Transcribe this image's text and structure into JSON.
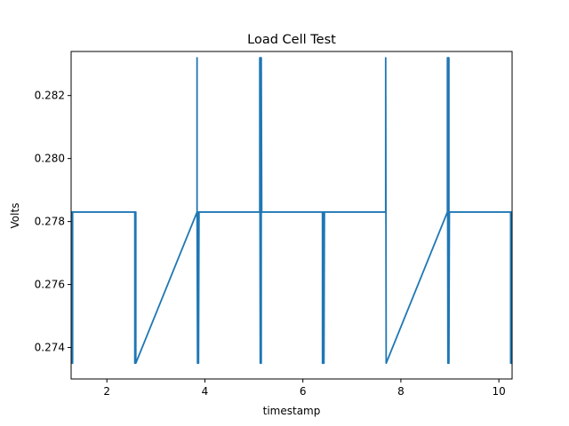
{
  "chart_data": {
    "type": "line",
    "title": "Load Cell Test",
    "xlabel": "timestamp",
    "ylabel": "Volts",
    "xlim": [
      1.27,
      10.27
    ],
    "ylim": [
      0.273,
      0.2834
    ],
    "xticks": [
      2,
      4,
      6,
      8,
      10
    ],
    "yticks": [
      0.274,
      0.276,
      0.278,
      0.28,
      0.282
    ],
    "ytick_labels": [
      "0.274",
      "0.276",
      "0.278",
      "0.280",
      "0.282"
    ],
    "grid": false,
    "series_color": "#1f77b4",
    "series": [
      {
        "x": [
          1.27,
          1.29,
          1.29,
          1.29,
          1.3,
          1.3,
          1.31,
          2.57,
          2.57,
          2.57,
          2.58,
          2.58,
          2.59,
          2.59,
          2.59,
          3.84,
          3.84,
          3.84,
          3.85,
          3.85,
          3.86,
          3.86,
          3.86,
          3.87,
          3.87,
          3.88,
          5.12,
          5.12,
          5.13,
          5.13,
          5.14,
          5.14,
          5.15,
          5.15,
          5.16,
          6.4,
          6.4,
          6.41,
          6.41,
          6.42,
          6.42,
          6.43,
          6.43,
          6.44,
          7.69,
          7.69,
          7.7,
          8.95,
          8.95,
          8.96,
          8.96,
          8.96,
          8.97,
          8.97,
          8.98,
          8.98,
          8.99,
          10.24,
          10.24,
          10.25,
          10.25,
          10.26,
          10.26,
          10.27
        ],
        "y": [
          0.2783,
          0.2783,
          0.2735,
          0.2783,
          0.2735,
          0.2783,
          0.2783,
          0.2783,
          0.2735,
          0.2783,
          0.2735,
          0.2783,
          0.2735,
          0.2783,
          0.2735,
          0.2783,
          0.2832,
          0.2783,
          0.2735,
          0.2783,
          0.2735,
          0.2783,
          0.2735,
          0.2783,
          0.2735,
          0.2783,
          0.2783,
          0.2832,
          0.2735,
          0.2832,
          0.2735,
          0.2832,
          0.2735,
          0.2832,
          0.2783,
          0.2783,
          0.2735,
          0.2783,
          0.2735,
          0.2783,
          0.2735,
          0.2783,
          0.2735,
          0.2783,
          0.2783,
          0.2832,
          0.2735,
          0.2783,
          0.2832,
          0.2735,
          0.2832,
          0.2735,
          0.2832,
          0.2735,
          0.2832,
          0.2735,
          0.2783,
          0.2783,
          0.2735,
          0.2783,
          0.2735,
          0.2783,
          0.2735,
          0.2783
        ]
      }
    ]
  }
}
